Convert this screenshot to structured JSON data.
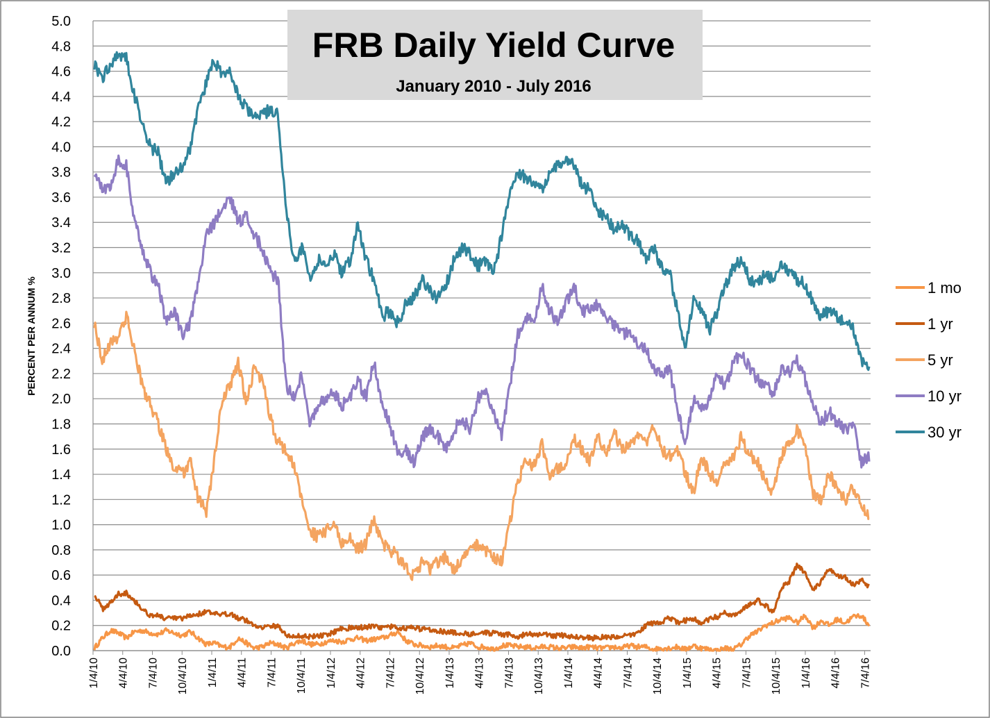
{
  "chart_data": {
    "type": "line",
    "title": "FRB Daily Yield Curve",
    "subtitle": "January 2010 - July 2016",
    "xlabel": "",
    "ylabel": "PERCENT PER ANNUM %",
    "ylim": [
      0.0,
      5.0
    ],
    "y_ticks": [
      "0.0",
      "0.2",
      "0.4",
      "0.6",
      "0.8",
      "1.0",
      "1.2",
      "1.4",
      "1.6",
      "1.8",
      "2.0",
      "2.2",
      "2.4",
      "2.6",
      "2.8",
      "3.0",
      "3.2",
      "3.4",
      "3.6",
      "3.8",
      "4.0",
      "4.2",
      "4.4",
      "4.6",
      "4.8",
      "5.0"
    ],
    "x_ticks": [
      "1/4/10",
      "4/4/10",
      "7/4/10",
      "10/4/10",
      "1/4/11",
      "4/4/11",
      "7/4/11",
      "10/4/11",
      "1/4/12",
      "4/4/12",
      "7/4/12",
      "10/4/12",
      "1/4/13",
      "4/4/13",
      "7/4/13",
      "10/4/13",
      "1/4/14",
      "4/4/14",
      "7/4/14",
      "10/4/14",
      "1/4/15",
      "4/4/15",
      "7/4/15",
      "10/4/15",
      "1/4/16",
      "4/4/16",
      "7/4/16"
    ],
    "grid": true,
    "legend_position": "right",
    "series": [
      {
        "name": "1 mo",
        "color": "#f79646",
        "values": [
          0.02,
          0.1,
          0.16,
          0.14,
          0.1,
          0.15,
          0.16,
          0.14,
          0.13,
          0.16,
          0.14,
          0.12,
          0.15,
          0.1,
          0.05,
          0.06,
          0.03,
          0.03,
          0.1,
          0.06,
          0.02,
          0.03,
          0.06,
          0.05,
          0.02,
          0.06,
          0.08,
          0.05,
          0.05,
          0.07,
          0.08,
          0.07,
          0.09,
          0.1,
          0.08,
          0.09,
          0.1,
          0.12,
          0.15,
          0.08,
          0.05,
          0.04,
          0.03,
          0.04,
          0.03,
          0.02,
          0.04,
          0.06,
          0.03,
          0.03,
          0.01,
          0.04,
          0.04,
          0.03,
          0.03,
          0.02,
          0.03,
          0.03,
          0.02,
          0.02,
          0.03,
          0.02,
          0.03,
          0.02,
          0.02,
          0.03,
          0.02,
          0.04,
          0.03,
          0.03,
          0.01,
          0.02,
          0.02,
          0.03,
          0.01,
          0.04,
          0.02,
          0.01,
          0.0,
          0.02,
          0.01,
          0.05,
          0.12,
          0.15,
          0.2,
          0.22,
          0.25,
          0.26,
          0.22,
          0.28,
          0.18,
          0.24,
          0.2,
          0.25,
          0.22,
          0.27,
          0.28,
          0.2
        ]
      },
      {
        "name": "1 yr",
        "color": "#c55a11",
        "values": [
          0.45,
          0.33,
          0.38,
          0.45,
          0.46,
          0.4,
          0.33,
          0.28,
          0.28,
          0.25,
          0.26,
          0.25,
          0.28,
          0.29,
          0.31,
          0.29,
          0.28,
          0.3,
          0.26,
          0.24,
          0.2,
          0.19,
          0.19,
          0.2,
          0.12,
          0.11,
          0.12,
          0.11,
          0.12,
          0.12,
          0.15,
          0.18,
          0.18,
          0.18,
          0.19,
          0.19,
          0.18,
          0.19,
          0.18,
          0.18,
          0.18,
          0.17,
          0.17,
          0.16,
          0.15,
          0.14,
          0.14,
          0.13,
          0.15,
          0.14,
          0.14,
          0.12,
          0.13,
          0.11,
          0.13,
          0.13,
          0.13,
          0.12,
          0.12,
          0.12,
          0.11,
          0.11,
          0.1,
          0.1,
          0.11,
          0.11,
          0.11,
          0.12,
          0.14,
          0.2,
          0.22,
          0.23,
          0.26,
          0.22,
          0.24,
          0.25,
          0.22,
          0.25,
          0.27,
          0.3,
          0.28,
          0.32,
          0.36,
          0.4,
          0.36,
          0.3,
          0.5,
          0.55,
          0.68,
          0.62,
          0.48,
          0.55,
          0.65,
          0.6,
          0.58,
          0.52,
          0.56,
          0.5
        ]
      },
      {
        "name": "5 yr",
        "color": "#f4a460",
        "values": [
          2.6,
          2.3,
          2.45,
          2.5,
          2.65,
          2.4,
          2.1,
          1.95,
          1.8,
          1.6,
          1.45,
          1.4,
          1.5,
          1.2,
          1.1,
          1.5,
          2.0,
          2.1,
          2.3,
          1.95,
          2.25,
          2.15,
          1.85,
          1.65,
          1.6,
          1.45,
          1.2,
          0.95,
          0.9,
          0.95,
          1.0,
          0.85,
          0.9,
          0.8,
          0.85,
          1.05,
          0.85,
          0.8,
          0.75,
          0.65,
          0.6,
          0.7,
          0.65,
          0.7,
          0.75,
          0.65,
          0.7,
          0.8,
          0.85,
          0.8,
          0.75,
          0.7,
          1.0,
          1.35,
          1.5,
          1.45,
          1.65,
          1.4,
          1.45,
          1.5,
          1.7,
          1.6,
          1.5,
          1.7,
          1.55,
          1.75,
          1.6,
          1.65,
          1.7,
          1.65,
          1.8,
          1.6,
          1.55,
          1.6,
          1.4,
          1.25,
          1.55,
          1.4,
          1.35,
          1.5,
          1.55,
          1.7,
          1.55,
          1.5,
          1.35,
          1.25,
          1.55,
          1.65,
          1.75,
          1.6,
          1.25,
          1.2,
          1.4,
          1.3,
          1.2,
          1.3,
          1.15,
          1.05
        ]
      },
      {
        "name": "10 yr",
        "color": "#8e7cc3",
        "values": [
          3.8,
          3.65,
          3.7,
          3.9,
          3.85,
          3.4,
          3.2,
          3.0,
          2.9,
          2.6,
          2.7,
          2.5,
          2.6,
          2.9,
          3.3,
          3.4,
          3.5,
          3.6,
          3.4,
          3.45,
          3.3,
          3.2,
          3.0,
          2.95,
          2.1,
          2.0,
          2.2,
          1.8,
          1.95,
          2.0,
          2.05,
          1.95,
          2.0,
          2.15,
          2.0,
          2.3,
          1.95,
          1.8,
          1.55,
          1.6,
          1.5,
          1.7,
          1.75,
          1.7,
          1.6,
          1.75,
          1.85,
          1.75,
          2.0,
          2.05,
          1.9,
          1.7,
          2.1,
          2.5,
          2.65,
          2.6,
          2.9,
          2.7,
          2.6,
          2.75,
          2.9,
          2.7,
          2.7,
          2.75,
          2.65,
          2.6,
          2.5,
          2.55,
          2.45,
          2.4,
          2.25,
          2.2,
          2.25,
          1.9,
          1.65,
          2.0,
          1.9,
          2.0,
          2.2,
          2.1,
          2.3,
          2.35,
          2.25,
          2.15,
          2.1,
          2.05,
          2.25,
          2.2,
          2.3,
          2.15,
          1.95,
          1.8,
          1.9,
          1.8,
          1.75,
          1.8,
          1.5,
          1.55
        ]
      },
      {
        "name": "30 yr",
        "color": "#31859c",
        "values": [
          4.65,
          4.55,
          4.65,
          4.75,
          4.7,
          4.4,
          4.2,
          4.0,
          3.95,
          3.7,
          3.8,
          3.85,
          4.0,
          4.3,
          4.5,
          4.7,
          4.55,
          4.6,
          4.4,
          4.3,
          4.25,
          4.25,
          4.3,
          4.25,
          3.5,
          3.1,
          3.2,
          2.95,
          3.1,
          3.05,
          3.15,
          3.0,
          3.1,
          3.4,
          3.1,
          2.95,
          2.65,
          2.7,
          2.6,
          2.75,
          2.8,
          2.95,
          2.85,
          2.8,
          2.9,
          3.1,
          3.2,
          3.15,
          3.05,
          3.1,
          3.0,
          3.3,
          3.6,
          3.8,
          3.75,
          3.7,
          3.65,
          3.8,
          3.85,
          3.9,
          3.85,
          3.7,
          3.65,
          3.5,
          3.45,
          3.35,
          3.4,
          3.3,
          3.25,
          3.1,
          3.2,
          3.05,
          3.0,
          2.7,
          2.4,
          2.8,
          2.7,
          2.55,
          2.7,
          2.9,
          3.05,
          3.1,
          2.95,
          2.9,
          3.0,
          2.95,
          3.05,
          3.0,
          2.95,
          2.9,
          2.75,
          2.65,
          2.7,
          2.65,
          2.6,
          2.55,
          2.3,
          2.25
        ]
      }
    ]
  }
}
